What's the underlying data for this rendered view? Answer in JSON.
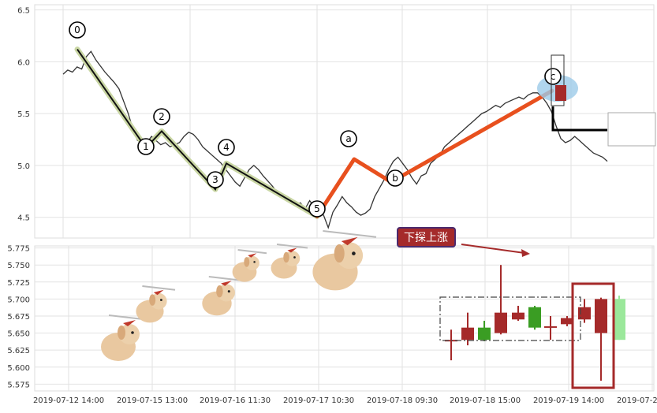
{
  "chart_data": [
    {
      "type": "line",
      "title": "",
      "xlabel": "",
      "ylabel": "",
      "yticks": [
        "4.5",
        "5.0",
        "5.5",
        "6.0",
        "6.5"
      ],
      "ylim": [
        4.3,
        6.55
      ],
      "grid": true,
      "price_series": [
        5.88,
        5.92,
        5.9,
        5.95,
        5.93,
        6.05,
        6.1,
        6.02,
        5.96,
        5.9,
        5.85,
        5.8,
        5.74,
        5.62,
        5.5,
        5.35,
        5.24,
        5.26,
        5.22,
        5.28,
        5.24,
        5.2,
        5.22,
        5.18,
        5.2,
        5.22,
        5.28,
        5.32,
        5.3,
        5.25,
        5.18,
        5.14,
        5.1,
        5.06,
        5.02,
        4.96,
        4.9,
        4.84,
        4.8,
        4.88,
        4.96,
        5.0,
        4.96,
        4.9,
        4.85,
        4.8,
        4.74,
        4.7,
        4.66,
        4.68,
        4.62,
        4.64,
        4.58,
        4.66,
        4.6,
        4.56,
        4.52,
        4.4,
        4.55,
        4.62,
        4.7,
        4.64,
        4.6,
        4.55,
        4.52,
        4.54,
        4.58,
        4.7,
        4.78,
        4.86,
        4.96,
        5.04,
        5.08,
        5.02,
        4.96,
        4.88,
        4.82,
        4.9,
        4.92,
        5.02,
        5.06,
        5.1,
        5.18,
        5.22,
        5.26,
        5.3,
        5.34,
        5.38,
        5.42,
        5.46,
        5.5,
        5.52,
        5.55,
        5.58,
        5.56,
        5.6,
        5.62,
        5.64,
        5.66,
        5.64,
        5.68,
        5.7,
        5.7,
        5.66,
        5.6,
        5.52,
        5.38,
        5.26,
        5.22,
        5.24,
        5.28,
        5.24,
        5.2,
        5.16,
        5.12,
        5.1,
        5.08,
        5.04
      ],
      "wave_impulse": {
        "labels": [
          "0",
          "1",
          "2",
          "3",
          "4",
          "5"
        ],
        "values": [
          6.12,
          5.17,
          5.33,
          4.77,
          5.02,
          4.51
        ]
      },
      "wave_abc": {
        "labels": [
          "a",
          "b",
          "c"
        ],
        "values": [
          5.06,
          4.84,
          5.72
        ]
      },
      "candle_segment_series": "5.53-5.03"
    },
    {
      "type": "candlestick",
      "title": "",
      "xlabel": "",
      "ylabel": "",
      "yticks": [
        "5.775",
        "5.750",
        "5.725",
        "5.700",
        "5.675",
        "5.650",
        "5.625",
        "5.600",
        "5.575"
      ],
      "ylim": [
        5.565,
        5.778
      ],
      "grid": true,
      "x_ticks": [
        "2019-07-12 14:00",
        "2019-07-15 13:00",
        "2019-07-16 11:30",
        "2019-07-17 10:30",
        "2019-07-18 09:30",
        "2019-07-18 15:00",
        "2019-07-19 14:00",
        "2019-07-22 13:00"
      ],
      "candles": [
        {
          "open": 5.64,
          "close": 5.64,
          "high": 5.655,
          "low": 5.61,
          "color": "red"
        },
        {
          "open": 5.64,
          "close": 5.658,
          "high": 5.68,
          "low": 5.632,
          "color": "red"
        },
        {
          "open": 5.658,
          "close": 5.64,
          "high": 5.668,
          "low": 5.638,
          "color": "green"
        },
        {
          "open": 5.65,
          "close": 5.68,
          "high": 5.75,
          "low": 5.648,
          "color": "red"
        },
        {
          "open": 5.67,
          "close": 5.68,
          "high": 5.69,
          "low": 5.668,
          "color": "red"
        },
        {
          "open": 5.688,
          "close": 5.658,
          "high": 5.69,
          "low": 5.655,
          "color": "green"
        },
        {
          "open": 5.66,
          "close": 5.66,
          "high": 5.675,
          "low": 5.64,
          "color": "red"
        },
        {
          "open": 5.663,
          "close": 5.672,
          "high": 5.675,
          "low": 5.66,
          "color": "red"
        },
        {
          "open": 5.67,
          "close": 5.688,
          "high": 5.7,
          "low": 5.665,
          "color": "red"
        },
        {
          "open": 5.65,
          "close": 5.7,
          "high": 5.702,
          "low": 5.58,
          "color": "red"
        },
        {
          "open": 5.7,
          "close": 5.64,
          "high": 5.705,
          "low": 5.64,
          "color": "green"
        }
      ],
      "annotation": "下探上涨",
      "colors": {
        "up": "#a52a2a",
        "down": "#3a9d23",
        "wave_impulse": "#c9d6a3",
        "wave_abc": "#e8501e",
        "price": "#333333"
      }
    }
  ]
}
